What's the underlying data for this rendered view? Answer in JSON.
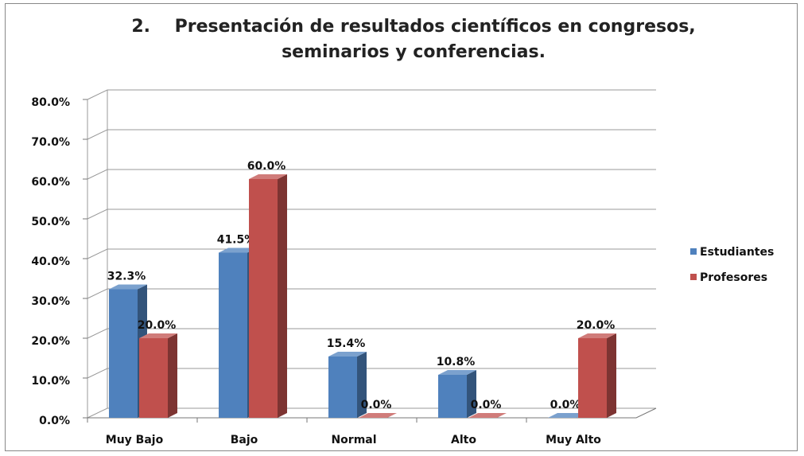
{
  "chart_data": {
    "type": "bar3d",
    "title": "2.    Presentación de resultados científicos en congresos, seminarios y conferencias.",
    "categories": [
      "Muy Bajo",
      "Bajo",
      "Normal",
      "Alto",
      "Muy Alto"
    ],
    "series": [
      {
        "name": "Estudiantes",
        "color": "#4f81bd",
        "values": [
          32.3,
          41.5,
          15.4,
          10.8,
          0
        ],
        "value_labels": [
          "32.3%",
          "41.5%",
          "15.4%",
          "10.8%",
          "0.0%"
        ]
      },
      {
        "name": "Profesores",
        "color": "#c0504d",
        "values": [
          20,
          60,
          0,
          0,
          20
        ],
        "value_labels": [
          "20.0%",
          "60.0%",
          "0.0%",
          "0.0%",
          "20.0%"
        ]
      }
    ],
    "ylim": [
      0,
      80
    ],
    "yticks": [
      {
        "value": 0,
        "label": "0.0%"
      },
      {
        "value": 10,
        "label": "10.0%"
      },
      {
        "value": 20,
        "label": "20.0%"
      },
      {
        "value": 30,
        "label": "30.0%"
      },
      {
        "value": 40,
        "label": "40.0%"
      },
      {
        "value": 50,
        "label": "50.0%"
      },
      {
        "value": 60,
        "label": "60.0%"
      },
      {
        "value": 70,
        "label": "70.0%"
      },
      {
        "value": 80,
        "label": "80.0%"
      }
    ],
    "grid": true,
    "legend": "right"
  }
}
